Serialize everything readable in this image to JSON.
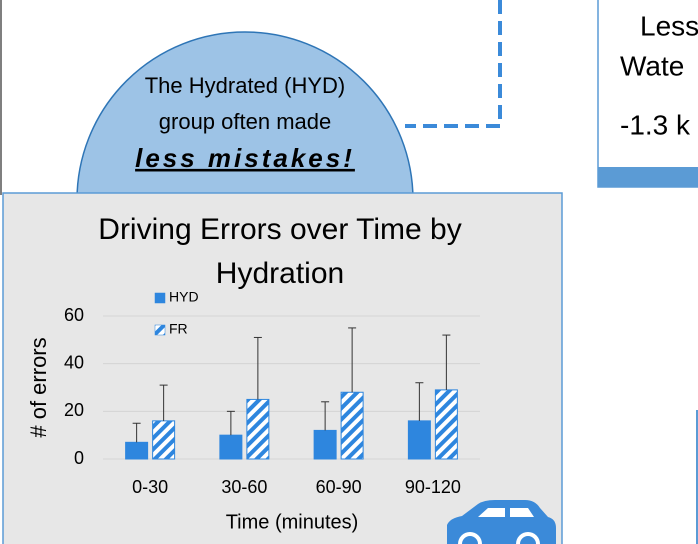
{
  "callout": {
    "lines": [
      "The Hydrated (HYD)",
      "group often made",
      "less mistakes!"
    ]
  },
  "side_box": {
    "lines": [
      "Less",
      "Wate",
      "-1.3 k"
    ]
  },
  "chart_data": {
    "type": "bar",
    "title": "Driving Errors over Time by Hydration",
    "x_label": "Time (minutes)",
    "y_label": "# of errors",
    "categories": [
      "0-30",
      "30-60",
      "60-90",
      "90-120"
    ],
    "series": [
      {
        "name": "HYD",
        "color": "#2e86de",
        "pattern": "solid",
        "values": [
          7,
          10,
          12,
          16
        ],
        "errors": [
          8,
          10,
          12,
          16
        ]
      },
      {
        "name": "FR",
        "color": "#2e86de",
        "pattern": "striped",
        "values": [
          16,
          25,
          28,
          29
        ],
        "errors": [
          15,
          26,
          27,
          23
        ]
      }
    ],
    "ylim": [
      0,
      60
    ],
    "yticks": [
      0,
      20,
      40,
      60
    ],
    "grid": true,
    "legend": "top-left"
  }
}
